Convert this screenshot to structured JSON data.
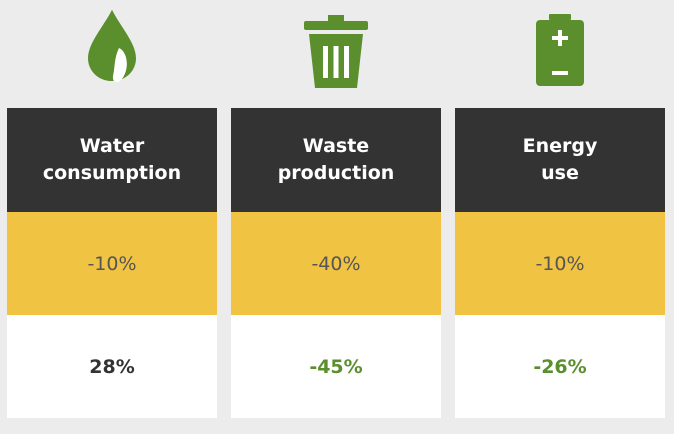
{
  "colors": {
    "background": "#ececec",
    "header": "#333333",
    "highlight": "#f1c342",
    "icon_green": "#5b8f2e",
    "positive_text": "#333333",
    "negative_text": "#5b8f2e"
  },
  "cards": [
    {
      "icon": "water-drop-icon",
      "title_line1": "Water",
      "title_line2": "consumption",
      "target": "-10%",
      "actual": "28%",
      "actual_color": "#333333"
    },
    {
      "icon": "trash-can-icon",
      "title_line1": "Waste",
      "title_line2": "production",
      "target": "-40%",
      "actual": "-45%",
      "actual_color": "#5b8f2e"
    },
    {
      "icon": "battery-icon",
      "title_line1": "Energy",
      "title_line2": "use",
      "target": "-10%",
      "actual": "-26%",
      "actual_color": "#5b8f2e"
    }
  ]
}
